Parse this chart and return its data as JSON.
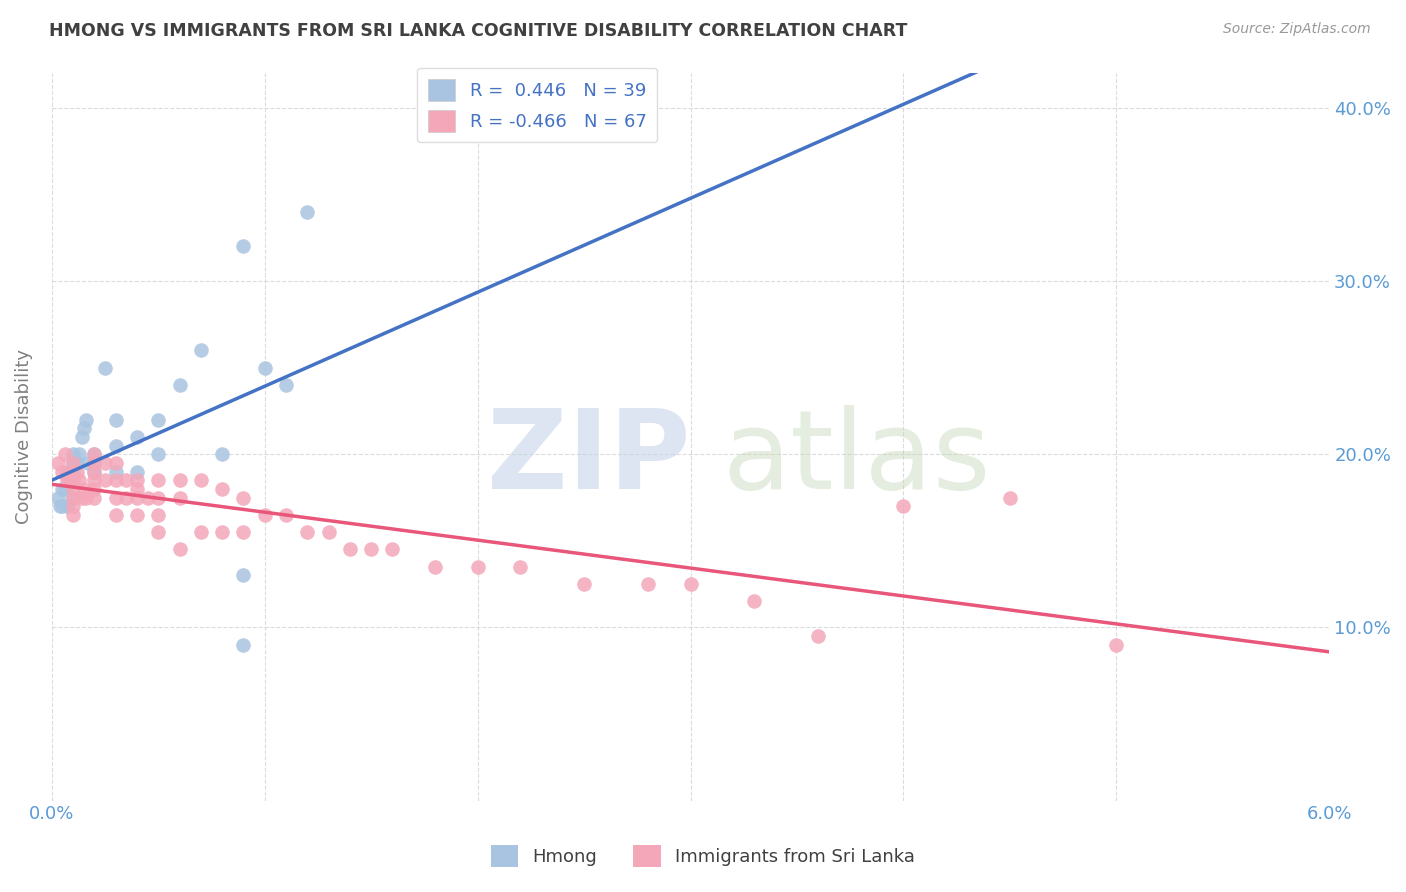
{
  "title": "HMONG VS IMMIGRANTS FROM SRI LANKA COGNITIVE DISABILITY CORRELATION CHART",
  "source": "Source: ZipAtlas.com",
  "ylabel": "Cognitive Disability",
  "xlim": [
    0.0,
    0.06
  ],
  "ylim": [
    0.0,
    0.42
  ],
  "r_hmong": 0.446,
  "n_hmong": 39,
  "r_srilanka": -0.466,
  "n_srilanka": 67,
  "hmong_color": "#a8c4e0",
  "srilanka_color": "#f4a7b9",
  "line_hmong_color": "#4472c4",
  "line_srilanka_color": "#e8567a",
  "background_color": "#ffffff",
  "grid_color": "#cccccc",
  "title_color": "#404040",
  "axis_label_color": "#5b9bd5",
  "hmong_x": [
    0.0003,
    0.0004,
    0.0005,
    0.0005,
    0.0006,
    0.0007,
    0.0007,
    0.0008,
    0.0009,
    0.001,
    0.001,
    0.001,
    0.001,
    0.0012,
    0.0013,
    0.0014,
    0.0015,
    0.0016,
    0.0017,
    0.002,
    0.002,
    0.002,
    0.0025,
    0.003,
    0.003,
    0.003,
    0.004,
    0.004,
    0.005,
    0.005,
    0.006,
    0.007,
    0.008,
    0.009,
    0.009,
    0.009,
    0.01,
    0.011,
    0.012
  ],
  "hmong_y": [
    0.175,
    0.17,
    0.18,
    0.17,
    0.18,
    0.17,
    0.19,
    0.185,
    0.19,
    0.19,
    0.175,
    0.195,
    0.2,
    0.195,
    0.2,
    0.21,
    0.215,
    0.22,
    0.195,
    0.2,
    0.195,
    0.19,
    0.25,
    0.22,
    0.205,
    0.19,
    0.21,
    0.19,
    0.22,
    0.2,
    0.24,
    0.26,
    0.2,
    0.32,
    0.13,
    0.09,
    0.25,
    0.24,
    0.34
  ],
  "srilanka_x": [
    0.0003,
    0.0005,
    0.0006,
    0.0007,
    0.0008,
    0.0009,
    0.001,
    0.001,
    0.001,
    0.001,
    0.001,
    0.001,
    0.0012,
    0.0013,
    0.0014,
    0.0015,
    0.0016,
    0.002,
    0.002,
    0.002,
    0.002,
    0.002,
    0.002,
    0.0025,
    0.0025,
    0.003,
    0.003,
    0.003,
    0.003,
    0.0035,
    0.0035,
    0.004,
    0.004,
    0.004,
    0.004,
    0.0045,
    0.005,
    0.005,
    0.005,
    0.005,
    0.006,
    0.006,
    0.006,
    0.007,
    0.007,
    0.008,
    0.008,
    0.009,
    0.009,
    0.01,
    0.011,
    0.012,
    0.013,
    0.014,
    0.015,
    0.016,
    0.018,
    0.02,
    0.022,
    0.025,
    0.028,
    0.03,
    0.033,
    0.036,
    0.04,
    0.045,
    0.05
  ],
  "srilanka_y": [
    0.195,
    0.19,
    0.2,
    0.185,
    0.19,
    0.185,
    0.195,
    0.185,
    0.18,
    0.175,
    0.17,
    0.165,
    0.19,
    0.185,
    0.175,
    0.18,
    0.175,
    0.2,
    0.195,
    0.19,
    0.185,
    0.18,
    0.175,
    0.195,
    0.185,
    0.195,
    0.185,
    0.175,
    0.165,
    0.185,
    0.175,
    0.185,
    0.18,
    0.175,
    0.165,
    0.175,
    0.185,
    0.175,
    0.165,
    0.155,
    0.185,
    0.175,
    0.145,
    0.185,
    0.155,
    0.18,
    0.155,
    0.175,
    0.155,
    0.165,
    0.165,
    0.155,
    0.155,
    0.145,
    0.145,
    0.145,
    0.135,
    0.135,
    0.135,
    0.125,
    0.125,
    0.125,
    0.115,
    0.095,
    0.17,
    0.175,
    0.09
  ]
}
